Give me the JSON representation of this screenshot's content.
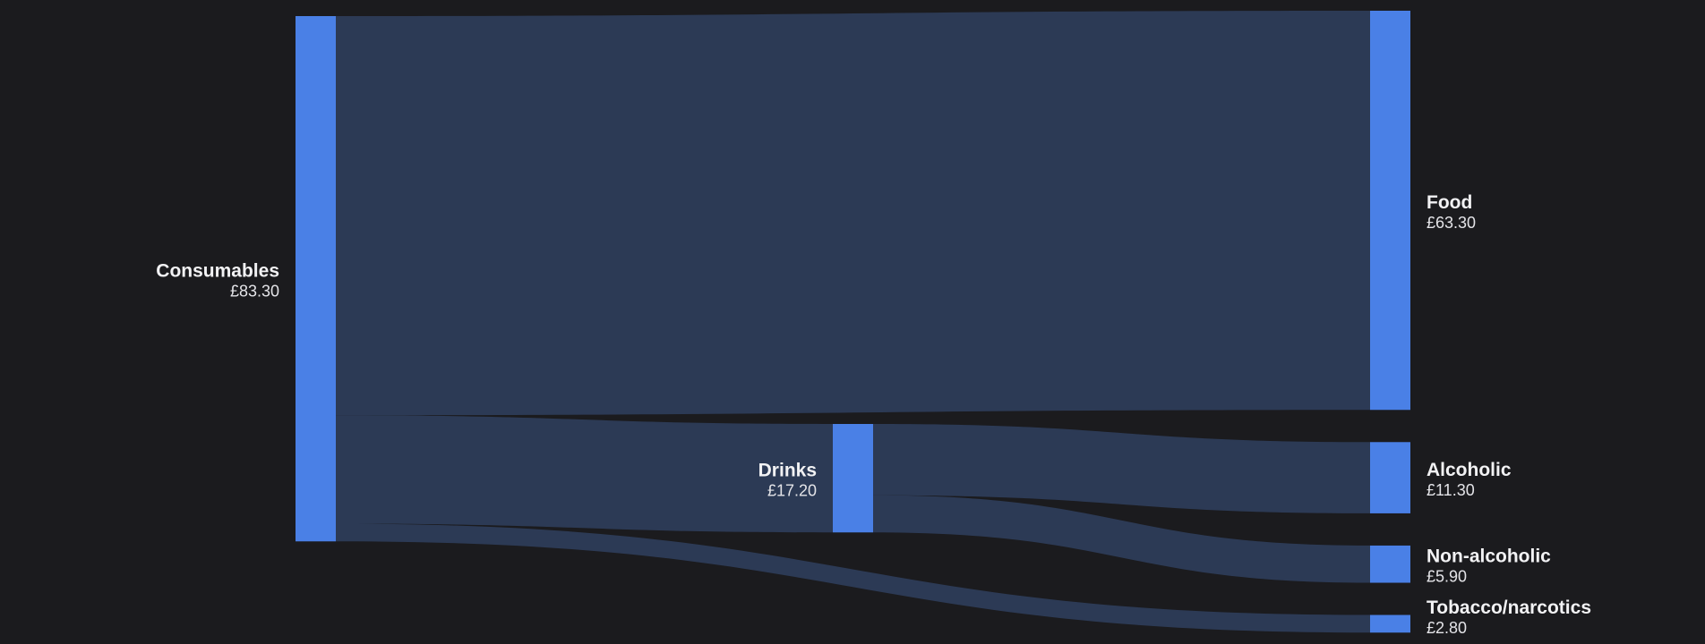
{
  "chart_data": {
    "type": "sankey",
    "currency": "£",
    "colors": {
      "background": "#1b1b1e",
      "node": "#4a80e6",
      "link": "#2c3a55",
      "label": "#f2f2f4"
    },
    "nodes": [
      {
        "id": "consumables",
        "name": "Consumables",
        "value": 83.3,
        "value_label": "£83.30",
        "column": 0
      },
      {
        "id": "drinks",
        "name": "Drinks",
        "value": 17.2,
        "value_label": "£17.20",
        "column": 1
      },
      {
        "id": "food",
        "name": "Food",
        "value": 63.3,
        "value_label": "£63.30",
        "column": 2
      },
      {
        "id": "alcoholic",
        "name": "Alcoholic",
        "value": 11.3,
        "value_label": "£11.30",
        "column": 2
      },
      {
        "id": "non_alcoholic",
        "name": "Non-alcoholic",
        "value": 5.9,
        "value_label": "£5.90",
        "column": 2
      },
      {
        "id": "tobacco",
        "name": "Tobacco/narcotics",
        "value": 2.8,
        "value_label": "£2.80",
        "column": 2
      }
    ],
    "links": [
      {
        "source": "consumables",
        "target": "food",
        "value": 63.3
      },
      {
        "source": "consumables",
        "target": "drinks",
        "value": 17.2
      },
      {
        "source": "consumables",
        "target": "tobacco",
        "value": 2.8
      },
      {
        "source": "drinks",
        "target": "alcoholic",
        "value": 11.3
      },
      {
        "source": "drinks",
        "target": "non_alcoholic",
        "value": 5.9
      }
    ]
  }
}
